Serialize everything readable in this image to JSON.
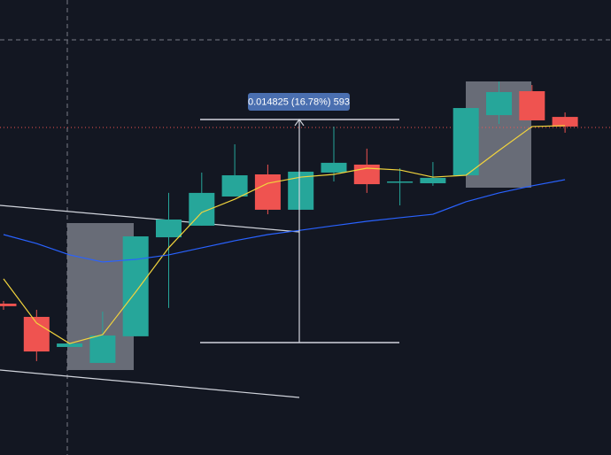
{
  "chart_data": {
    "type": "candlestick",
    "categories": [
      null,
      null,
      null,
      null,
      null,
      null,
      null,
      null,
      null,
      null,
      null,
      null,
      null,
      null,
      null,
      null,
      null,
      null
    ],
    "open": [
      0.09094,
      0.09006,
      0.08806,
      0.087,
      0.08877,
      0.09535,
      0.09612,
      0.09806,
      0.09953,
      0.09718,
      0.09965,
      0.10018,
      0.099,
      0.09894,
      0.09947,
      0.10347,
      0.10506,
      0.10335
    ],
    "high": [
      0.09112,
      0.09053,
      0.08829,
      0.09041,
      0.09541,
      0.0983,
      0.09965,
      0.10153,
      0.10018,
      0.09971,
      0.10271,
      0.10124,
      0.09994,
      0.10035,
      0.10394,
      0.10571,
      0.10547,
      0.10365
    ],
    "low": [
      0.09053,
      0.08712,
      0.08806,
      0.087,
      0.08877,
      0.09065,
      0.09612,
      0.09806,
      0.09688,
      0.09718,
      0.09906,
      0.0983,
      0.09747,
      0.09877,
      0.09947,
      0.10288,
      0.10312,
      0.1023
    ],
    "close": [
      0.09077,
      0.08776,
      0.08829,
      0.08882,
      0.09541,
      0.09653,
      0.0983,
      0.09947,
      0.09718,
      0.09971,
      0.1003,
      0.09888,
      0.09906,
      0.0993,
      0.10394,
      0.105,
      0.10312,
      0.10271
    ],
    "up_color": "#26a69a",
    "down_color": "#ef5350",
    "lines": [
      {
        "color": "#f2d43d",
        "values": [
          0.09259,
          0.08965,
          0.08829,
          0.08888,
          0.09171,
          0.09465,
          0.097,
          0.09788,
          0.09894,
          0.09935,
          0.09953,
          0.09994,
          0.09982,
          0.09935,
          0.09947,
          0.10112,
          0.10271,
          0.10277
        ]
      },
      {
        "color": "#2962ff",
        "values": [
          0.09553,
          0.09494,
          0.09418,
          0.09371,
          0.09388,
          0.09418,
          0.09465,
          0.09512,
          0.09553,
          0.09582,
          0.09612,
          0.09641,
          0.09665,
          0.09688,
          0.09771,
          0.0983,
          0.09877,
          0.09918
        ]
      }
    ],
    "last_price": 0.10265,
    "last_price_color": "#ef5350",
    "measure": {
      "from": 0.08835,
      "to": 0.10318,
      "label": "0.014825 (16.78%) 593"
    },
    "ylim": [
      0.08088,
      0.11112
    ]
  }
}
